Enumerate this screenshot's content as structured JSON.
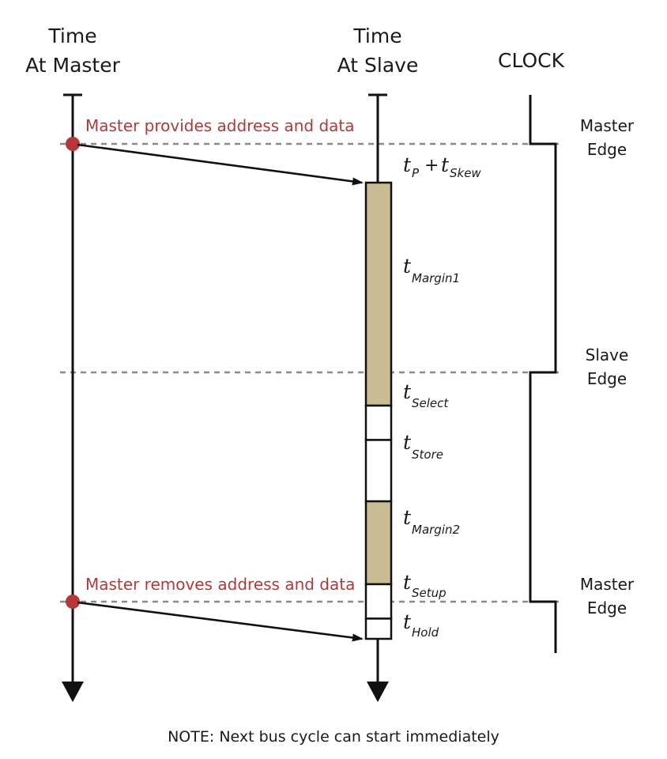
{
  "headers": {
    "master_line1": "Time",
    "master_line2": "At Master",
    "slave_line1": "Time",
    "slave_line2": "At Slave",
    "clock": "CLOCK"
  },
  "edges": {
    "first_master_line1": "Master",
    "first_master_line2": "Edge",
    "slave_line1": "Slave",
    "slave_line2": "Edge",
    "second_master_line1": "Master",
    "second_master_line2": "Edge"
  },
  "events": {
    "provides": "Master provides address and data",
    "removes": "Master removes address and data"
  },
  "timing_labels": {
    "tp_main": "t",
    "tp_sub": "P",
    "plus": "+",
    "tskew_main": "t",
    "tskew_sub": "Skew",
    "margin1_main": "t",
    "margin1_sub": "Margin1",
    "select_main": "t",
    "select_sub": "Select",
    "store_main": "t",
    "store_sub": "Store",
    "margin2_main": "t",
    "margin2_sub": "Margin2",
    "setup_main": "t",
    "setup_sub": "Setup",
    "hold_main": "t",
    "hold_sub": "Hold"
  },
  "segments": [
    {
      "name": "margin1",
      "fill": "#c9bc94",
      "start_fraction": 0.0,
      "end_fraction": 0.4888
    },
    {
      "name": "select",
      "fill": "#ffffff",
      "start_fraction": 0.4888,
      "end_fraction": 0.5641
    },
    {
      "name": "store",
      "fill": "#ffffff",
      "start_fraction": 0.5641,
      "end_fraction": 0.6986
    },
    {
      "name": "margin2",
      "fill": "#c9bc94",
      "start_fraction": 0.6986,
      "end_fraction": 0.8803
    },
    {
      "name": "setup",
      "fill": "#ffffff",
      "start_fraction": 0.8803,
      "end_fraction": 0.9557
    },
    {
      "name": "hold",
      "fill": "#ffffff",
      "start_fraction": 0.9557,
      "end_fraction": 1.0
    }
  ],
  "colors": {
    "event_text": "#b03a3a",
    "event_dot": "#b5373a",
    "tan_segment": "#c9bc94",
    "dashed_line": "#8a8a8a",
    "line": "#111111"
  },
  "note": "NOTE: Next bus cycle can start immediately"
}
